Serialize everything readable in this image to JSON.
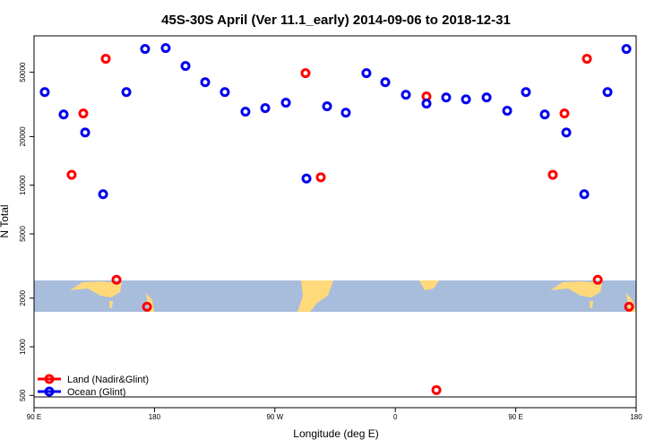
{
  "chart_data": {
    "type": "scatter",
    "title": "45S-30S April (Ver 11.1_early)   2014-09-06 to 2018-12-31",
    "x_label": "Longitude (deg E)",
    "y_label": "N Total",
    "xlim": [
      90,
      540
    ],
    "ylim": [
      420,
      84000
    ],
    "log_y": true,
    "xticks": [
      {
        "value": 90,
        "label": "90 E"
      },
      180,
      {
        "value": 270,
        "label": "90 W"
      },
      {
        "value": 360,
        "label": "0"
      },
      {
        "value": 450,
        "label": "90 E"
      },
      {
        "value": 540,
        "label": "180"
      }
    ],
    "yticks": [
      500,
      1000,
      2000,
      5000,
      10000,
      20000,
      50000
    ],
    "legend": "bottom-left",
    "series": [
      {
        "name": "Land (Nadir&Glint)",
        "color": "#ff0000",
        "x": [
          118.1,
          126.8,
          143.6,
          151.6,
          174.4,
          292.9,
          304.3,
          383.3,
          390.7,
          477.7,
          486.4,
          503.2,
          511.3,
          534.7
        ],
        "values": [
          11600,
          27800,
          60600,
          2600,
          1770,
          49400,
          11200,
          35400,
          540,
          11600,
          27800,
          60600,
          2600,
          1770
        ]
      },
      {
        "name": "Ocean (Glint)",
        "color": "#0000ee",
        "x": [
          98.0,
          112.1,
          128.2,
          141.6,
          159.0,
          173.0,
          188.4,
          203.2,
          217.9,
          232.6,
          248.0,
          262.8,
          278.2,
          293.6,
          309.0,
          323.0,
          338.4,
          352.5,
          367.9,
          383.3,
          398.0,
          412.8,
          428.2,
          443.6,
          457.6,
          471.7,
          487.8,
          501.2,
          518.6,
          532.7
        ],
        "values": [
          37700,
          27400,
          21200,
          8800,
          37700,
          69700,
          70600,
          54700,
          43400,
          37700,
          28500,
          30000,
          32400,
          11000,
          30800,
          28100,
          49400,
          43400,
          36300,
          32000,
          34900,
          34000,
          34900,
          28900,
          37700,
          27400,
          21200,
          8800,
          37700,
          69700
        ]
      }
    ]
  }
}
